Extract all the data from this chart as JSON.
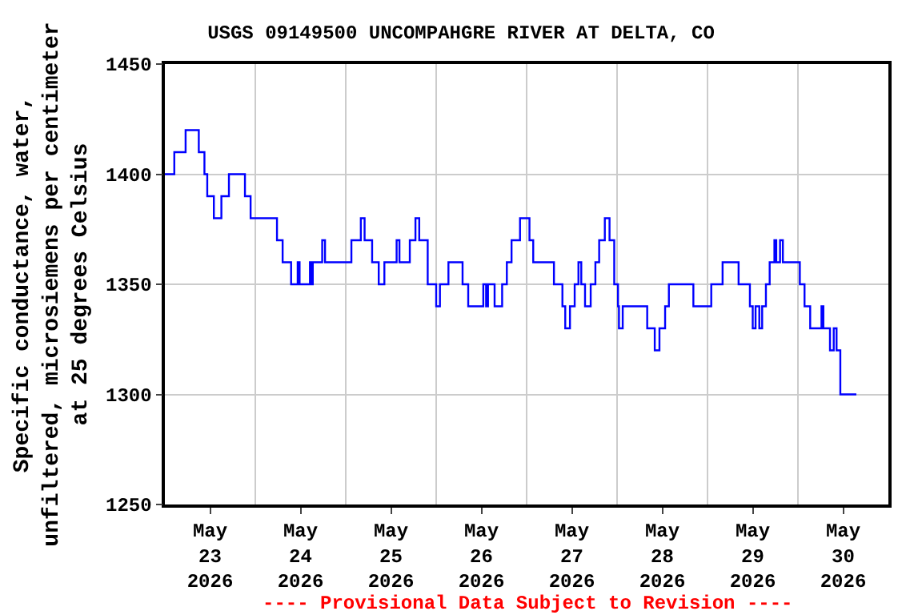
{
  "chart_data": {
    "type": "step",
    "title": "USGS 09149500 UNCOMPAHGRE RIVER AT DELTA, CO",
    "ylabel": "Specific conductance, water,\nunfiltered, microsiemens per centimeter\nat 25 degrees Celsius",
    "annotations": [
      "---- Provisional Data Subject to Revision ----"
    ],
    "x": [
      "2026-05-23T00:00",
      "2026-05-23T02:30",
      "2026-05-23T05:30",
      "2026-05-23T09:00",
      "2026-05-23T10:30",
      "2026-05-23T11:15",
      "2026-05-23T13:00",
      "2026-05-23T15:00",
      "2026-05-23T17:00",
      "2026-05-23T21:15",
      "2026-05-23T22:45",
      "2026-05-24T05:45",
      "2026-05-24T07:15",
      "2026-05-24T09:30",
      "2026-05-24T11:15",
      "2026-05-24T11:45",
      "2026-05-24T14:30",
      "2026-05-24T15:00",
      "2026-05-24T15:15",
      "2026-05-24T17:45",
      "2026-05-24T18:30",
      "2026-05-25T01:30",
      "2026-05-25T04:00",
      "2026-05-25T05:00",
      "2026-05-25T07:00",
      "2026-05-25T08:45",
      "2026-05-25T10:15",
      "2026-05-25T13:30",
      "2026-05-25T14:15",
      "2026-05-25T17:00",
      "2026-05-25T18:30",
      "2026-05-25T19:30",
      "2026-05-25T21:45",
      "2026-05-26T00:00",
      "2026-05-26T01:00",
      "2026-05-26T03:15",
      "2026-05-26T07:00",
      "2026-05-26T08:30",
      "2026-05-26T12:30",
      "2026-05-26T13:15",
      "2026-05-26T13:45",
      "2026-05-26T15:30",
      "2026-05-26T17:30",
      "2026-05-26T18:45",
      "2026-05-26T20:00",
      "2026-05-26T22:15",
      "2026-05-27T00:45",
      "2026-05-27T01:45",
      "2026-05-27T07:15",
      "2026-05-27T09:30",
      "2026-05-27T10:15",
      "2026-05-27T11:30",
      "2026-05-27T12:45",
      "2026-05-27T13:45",
      "2026-05-27T14:30",
      "2026-05-27T15:30",
      "2026-05-27T17:00",
      "2026-05-27T18:15",
      "2026-05-27T19:15",
      "2026-05-27T20:45",
      "2026-05-27T22:00",
      "2026-05-27T23:15",
      "2026-05-28T00:15",
      "2026-05-28T00:30",
      "2026-05-28T01:30",
      "2026-05-28T08:00",
      "2026-05-28T10:00",
      "2026-05-28T11:15",
      "2026-05-28T12:45",
      "2026-05-28T13:45",
      "2026-05-28T20:15",
      "2026-05-29T01:00",
      "2026-05-29T04:00",
      "2026-05-29T08:15",
      "2026-05-29T11:15",
      "2026-05-29T12:00",
      "2026-05-29T12:45",
      "2026-05-29T13:45",
      "2026-05-29T14:30",
      "2026-05-29T15:30",
      "2026-05-29T16:30",
      "2026-05-29T17:45",
      "2026-05-29T18:15",
      "2026-05-29T19:15",
      "2026-05-29T20:00",
      "2026-05-30T00:30",
      "2026-05-30T01:45",
      "2026-05-30T03:15",
      "2026-05-30T06:15",
      "2026-05-30T06:45",
      "2026-05-30T08:30",
      "2026-05-30T09:30",
      "2026-05-30T10:15",
      "2026-05-30T11:15",
      "2026-05-30T15:30"
    ],
    "series": [
      {
        "color": "#0000ff",
        "values": [
          1400,
          1410,
          1420,
          1410,
          1400,
          1390,
          1380,
          1390,
          1400,
          1390,
          1380,
          1370,
          1360,
          1350,
          1360,
          1350,
          1360,
          1350,
          1360,
          1370,
          1360,
          1370,
          1380,
          1370,
          1360,
          1350,
          1360,
          1370,
          1360,
          1370,
          1380,
          1370,
          1350,
          1340,
          1350,
          1360,
          1350,
          1340,
          1350,
          1340,
          1350,
          1340,
          1350,
          1360,
          1370,
          1380,
          1370,
          1360,
          1350,
          1340,
          1330,
          1340,
          1350,
          1360,
          1350,
          1340,
          1350,
          1360,
          1370,
          1380,
          1370,
          1350,
          1340,
          1330,
          1340,
          1330,
          1320,
          1330,
          1340,
          1350,
          1340,
          1350,
          1360,
          1350,
          1340,
          1330,
          1340,
          1330,
          1340,
          1350,
          1360,
          1370,
          1360,
          1370,
          1360,
          1350,
          1340,
          1330,
          1340,
          1330,
          1320,
          1330,
          1320,
          1300,
          1300
        ]
      }
    ],
    "xlim": [
      "2026-05-23T00:00",
      "2026-05-31T00:00"
    ],
    "xticks": [
      {
        "value": "2026-05-23T12:00",
        "label": "May\n23\n2026"
      },
      {
        "value": "2026-05-24T12:00",
        "label": "May\n24\n2026"
      },
      {
        "value": "2026-05-25T12:00",
        "label": "May\n25\n2026"
      },
      {
        "value": "2026-05-26T12:00",
        "label": "May\n26\n2026"
      },
      {
        "value": "2026-05-27T12:00",
        "label": "May\n27\n2026"
      },
      {
        "value": "2026-05-28T12:00",
        "label": "May\n28\n2026"
      },
      {
        "value": "2026-05-29T12:00",
        "label": "May\n29\n2026"
      },
      {
        "value": "2026-05-30T12:00",
        "label": "May\n30\n2026"
      },
      {
        "value": "2026-05-24T00:00",
        "label": null
      },
      {
        "value": "2026-05-25T00:00",
        "label": null
      },
      {
        "value": "2026-05-26T00:00",
        "label": null
      },
      {
        "value": "2026-05-27T00:00",
        "label": null
      },
      {
        "value": "2026-05-28T00:00",
        "label": null
      },
      {
        "value": "2026-05-29T00:00",
        "label": null
      },
      {
        "value": "2026-05-30T00:00",
        "label": null
      }
    ],
    "ylim": [
      1250,
      1450
    ],
    "yticks": [
      1250,
      1300,
      1350,
      1400,
      1450
    ],
    "grid": true,
    "line_style": "solid",
    "marker": "none"
  }
}
